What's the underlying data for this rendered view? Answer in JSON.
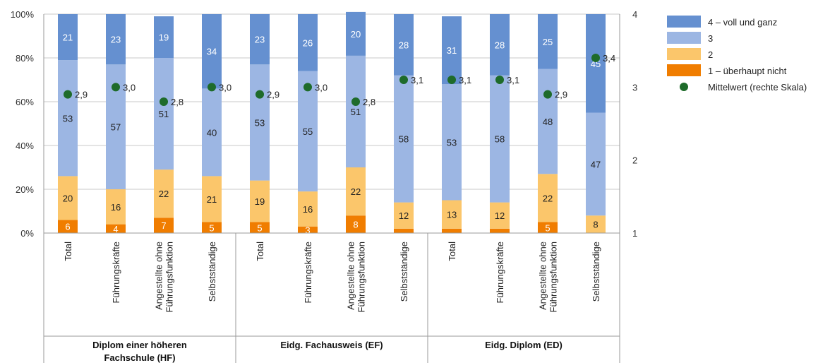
{
  "chart_data": {
    "type": "bar",
    "stacked": true,
    "normalized": true,
    "ylim": [
      0,
      100
    ],
    "y_ticks": [
      "0%",
      "20%",
      "40%",
      "60%",
      "80%",
      "100%"
    ],
    "y2_ticks": [
      "1",
      "2",
      "3",
      "4"
    ],
    "y2lim": [
      1,
      4
    ],
    "grid": true,
    "legend_position": "right",
    "groups": [
      {
        "name_lines": [
          "Diplom einer höheren",
          "Fachschule (HF)"
        ],
        "categories": [
          [
            "Total"
          ],
          [
            "Führungskräfte"
          ],
          [
            "Angestellte ohne",
            "Führungsfunktion"
          ],
          [
            "Selbstständige"
          ]
        ]
      },
      {
        "name_lines": [
          "Eidg. Fachausweis (EF)"
        ],
        "categories": [
          [
            "Total"
          ],
          [
            "Führungskräfte"
          ],
          [
            "Angestellte ohne",
            "Führungsfunktion"
          ],
          [
            "Selbstständige"
          ]
        ]
      },
      {
        "name_lines": [
          "Eidg. Diplom (ED)"
        ],
        "categories": [
          [
            "Total"
          ],
          [
            "Führungskräfte"
          ],
          [
            "Angestellte ohne",
            "Führungsfunktion"
          ],
          [
            "Selbstständige"
          ]
        ]
      }
    ],
    "series": [
      {
        "name": "1 – überhaupt nicht",
        "color": "#f07d00",
        "values": [
          6,
          4,
          7,
          5,
          5,
          3,
          8,
          2,
          2,
          2,
          5,
          0
        ],
        "labels": [
          "6",
          "4",
          "7",
          "5",
          "5",
          "3",
          "8",
          "",
          "",
          "",
          "5",
          ""
        ]
      },
      {
        "name": "2",
        "color": "#fbc66b",
        "values": [
          20,
          16,
          22,
          21,
          19,
          16,
          22,
          12,
          13,
          12,
          22,
          8
        ],
        "labels": [
          "20",
          "16",
          "22",
          "21",
          "19",
          "16",
          "22",
          "12",
          "13",
          "12",
          "22",
          "8"
        ]
      },
      {
        "name": "3",
        "color": "#9cb6e3",
        "values": [
          53,
          57,
          51,
          40,
          53,
          55,
          51,
          58,
          53,
          58,
          48,
          47
        ],
        "labels": [
          "53",
          "57",
          "51",
          "40",
          "53",
          "55",
          "51",
          "58",
          "53",
          "58",
          "48",
          "47"
        ]
      },
      {
        "name": "4 – voll und ganz",
        "color": "#6590d0",
        "values": [
          21,
          23,
          19,
          34,
          23,
          26,
          20,
          28,
          31,
          28,
          25,
          45
        ],
        "labels": [
          "21",
          "23",
          "19",
          "34",
          "23",
          "26",
          "20",
          "28",
          "31",
          "28",
          "25",
          "45"
        ]
      }
    ],
    "mean": {
      "name": "Mittelwert (rechte Skala)",
      "color": "#1e6b2a",
      "values": [
        2.9,
        3.0,
        2.8,
        3.0,
        2.9,
        3.0,
        2.8,
        3.1,
        3.1,
        3.1,
        2.9,
        3.4
      ],
      "labels": [
        "2,9",
        "3,0",
        "2,8",
        "3,0",
        "2,9",
        "3,0",
        "2,8",
        "3,1",
        "3,1",
        "3,1",
        "2,9",
        "3,4"
      ]
    },
    "legend_order": [
      "4 – voll und ganz",
      "3",
      "2",
      "1 – überhaupt nicht",
      "Mittelwert (rechte Skala)"
    ]
  }
}
